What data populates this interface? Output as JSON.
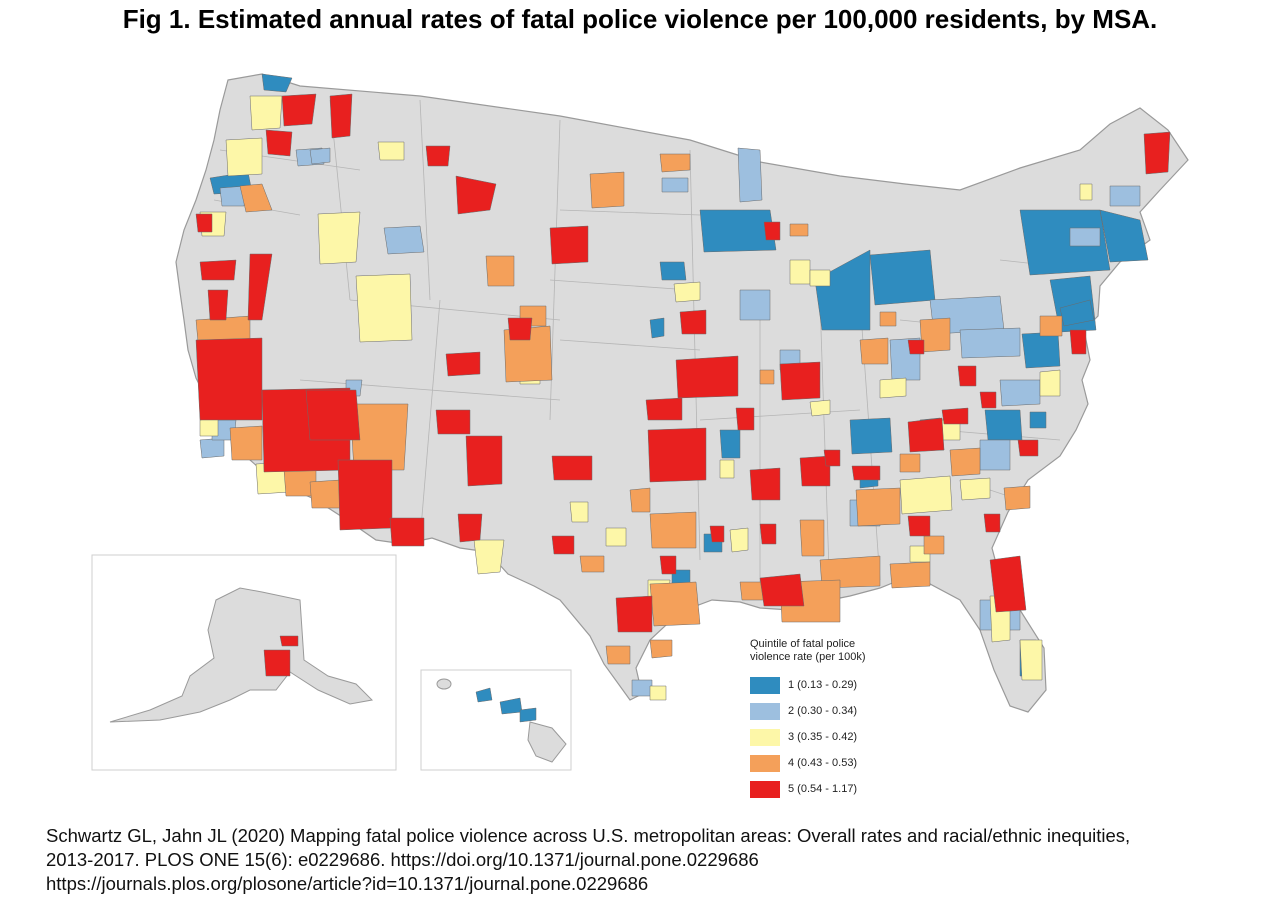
{
  "title": "Fig 1. Estimated annual rates of fatal police violence per 100,000 residents, by MSA.",
  "map": {
    "region": "United States (contiguous, Alaska, Hawaii insets)",
    "unit": "Metropolitan Statistical Area",
    "base_color": "#dcdcdc",
    "border_color": "#9a9a9a"
  },
  "legend": {
    "title_line1": "Quintile of fatal police",
    "title_line2": "violence rate (per 100k)",
    "items": [
      {
        "label": "1 (0.13 - 0.29)",
        "color": "#2f8cbf"
      },
      {
        "label": "2 (0.30 - 0.34)",
        "color": "#9dbfdf"
      },
      {
        "label": "3 (0.35 - 0.42)",
        "color": "#fdf7a8"
      },
      {
        "label": "4 (0.43 - 0.53)",
        "color": "#f4a05a"
      },
      {
        "label": "5 (0.54 - 1.17)",
        "color": "#e8201f"
      }
    ]
  },
  "citation": {
    "line1": "Schwartz GL, Jahn JL (2020) Mapping fatal police violence across U.S. metropolitan areas: Overall rates and racial/ethnic inequities,",
    "line2": "2013-2017. PLOS ONE 15(6): e0229686. https://doi.org/10.1371/journal.pone.0229686",
    "line3": "https://journals.plos.org/plosone/article?id=10.1371/journal.pone.0229686"
  }
}
